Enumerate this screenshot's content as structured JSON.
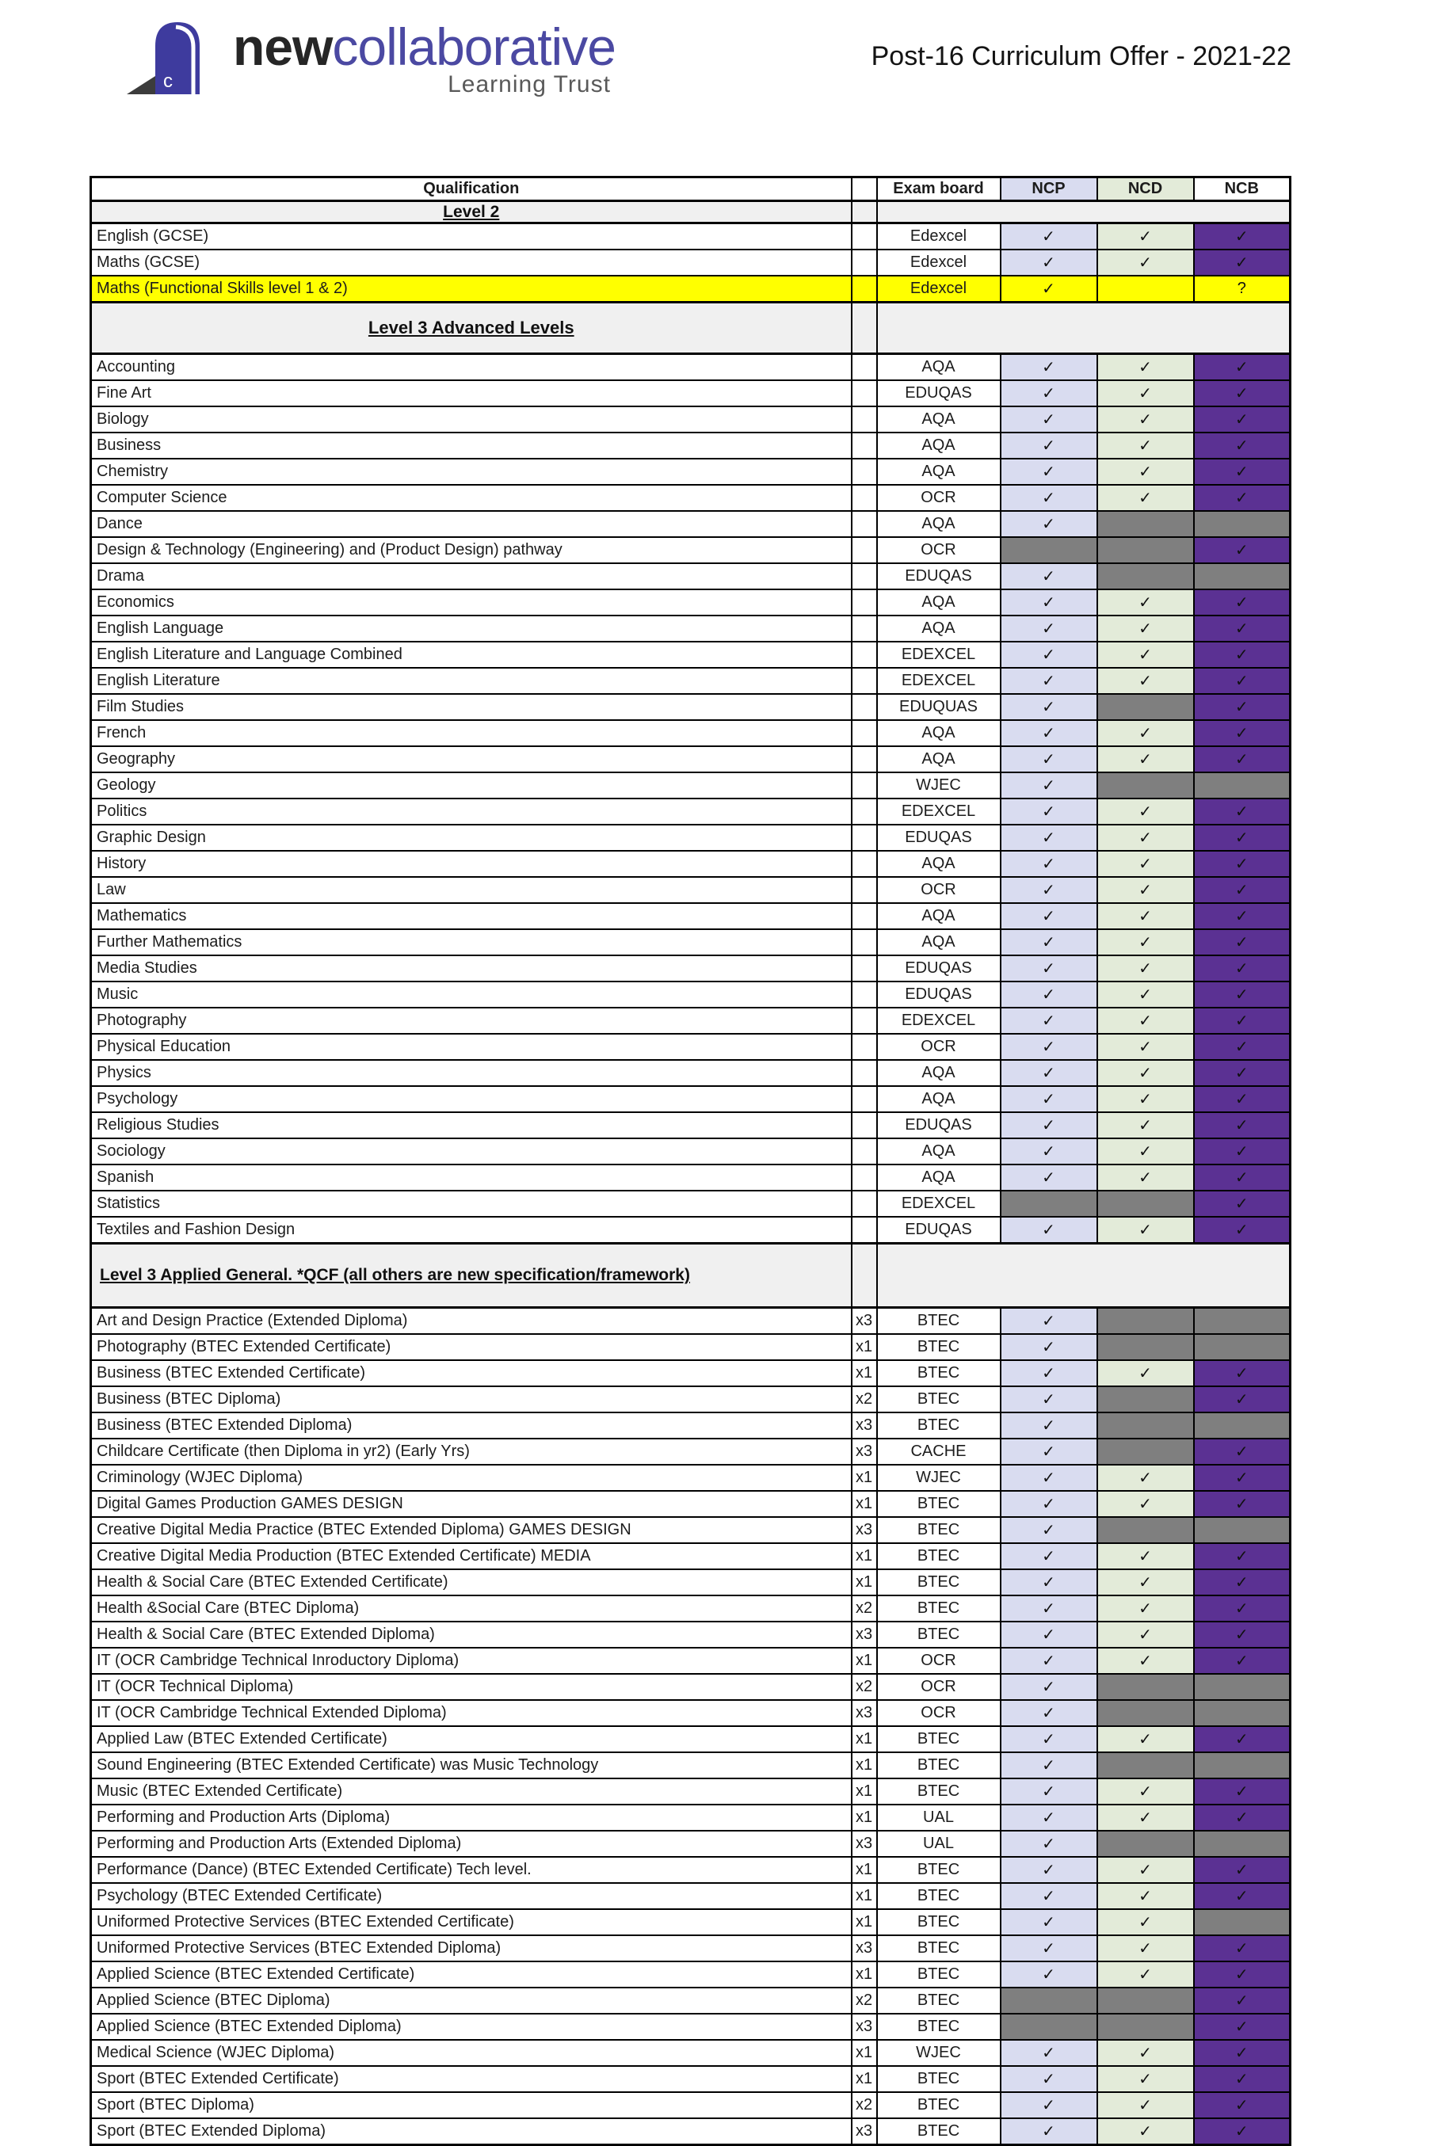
{
  "header": {
    "logo": {
      "brand_bold": "new",
      "brand_light": "collaborative",
      "subtitle": "Learning Trust"
    },
    "title": "Post-16 Curriculum Offer - 2021-22"
  },
  "glyphs": {
    "check": "✓",
    "question": "?"
  },
  "colors": {
    "brand_purple": "#4b49a2",
    "cell_purple": "#5b3193",
    "cell_lavender": "#d9dcf0",
    "cell_green": "#e3ebd9",
    "cell_gray": "#7f7f7f",
    "highlight_yellow": "#ffff00",
    "section_gray": "#f0f0f0"
  },
  "table": {
    "columns": [
      "Qualification",
      "",
      "Exam board",
      "NCP",
      "NCD",
      "NCB"
    ],
    "cell_codes": {
      "c": "check on tint",
      "p": "check on purple",
      "g": "gray blocked",
      "q": "question mark",
      "": "empty"
    },
    "sections": [
      {
        "label": "Level 2",
        "rows": [
          {
            "q": "English (GCSE)",
            "x": "",
            "b": "Edexcel",
            "ncp": "c",
            "ncd": "c",
            "ncb": "p"
          },
          {
            "q": "Maths (GCSE)",
            "x": "",
            "b": "Edexcel",
            "ncp": "c",
            "ncd": "c",
            "ncb": "p"
          },
          {
            "q": "Maths (Functional Skills level 1 & 2)",
            "x": "",
            "b": "Edexcel",
            "ncp": "c",
            "ncd": "",
            "ncb": "q",
            "hl": true
          }
        ]
      },
      {
        "label": "Level 3 Advanced Levels",
        "rows": [
          {
            "q": "Accounting",
            "x": "",
            "b": "AQA",
            "ncp": "c",
            "ncd": "c",
            "ncb": "p"
          },
          {
            "q": "Fine Art",
            "x": "",
            "b": "EDUQAS",
            "ncp": "c",
            "ncd": "c",
            "ncb": "p"
          },
          {
            "q": "Biology",
            "x": "",
            "b": "AQA",
            "ncp": "c",
            "ncd": "c",
            "ncb": "p"
          },
          {
            "q": "Business",
            "x": "",
            "b": "AQA",
            "ncp": "c",
            "ncd": "c",
            "ncb": "p"
          },
          {
            "q": "Chemistry",
            "x": "",
            "b": "AQA",
            "ncp": "c",
            "ncd": "c",
            "ncb": "p"
          },
          {
            "q": "Computer Science",
            "x": "",
            "b": "OCR",
            "ncp": "c",
            "ncd": "c",
            "ncb": "p"
          },
          {
            "q": "Dance",
            "x": "",
            "b": "AQA",
            "ncp": "c",
            "ncd": "g",
            "ncb": "g"
          },
          {
            "q": "Design & Technology (Engineering)  and  (Product Design) pathway",
            "x": "",
            "b": "OCR",
            "ncp": "g",
            "ncd": "g",
            "ncb": "p"
          },
          {
            "q": "Drama",
            "x": "",
            "b": "EDUQAS",
            "ncp": "c",
            "ncd": "g",
            "ncb": "g"
          },
          {
            "q": "Economics",
            "x": "",
            "b": "AQA",
            "ncp": "c",
            "ncd": "c",
            "ncb": "p"
          },
          {
            "q": "English Language",
            "x": "",
            "b": "AQA",
            "ncp": "c",
            "ncd": "c",
            "ncb": "p"
          },
          {
            "q": "English Literature and Language Combined",
            "x": "",
            "b": "EDEXCEL",
            "ncp": "c",
            "ncd": "c",
            "ncb": "p"
          },
          {
            "q": "English Literature",
            "x": "",
            "b": "EDEXCEL",
            "ncp": "c",
            "ncd": "c",
            "ncb": "p"
          },
          {
            "q": "Film Studies",
            "x": "",
            "b": "EDUQUAS",
            "ncp": "c",
            "ncd": "g",
            "ncb": "p"
          },
          {
            "q": "French",
            "x": "",
            "b": "AQA",
            "ncp": "c",
            "ncd": "c",
            "ncb": "p"
          },
          {
            "q": "Geography",
            "x": "",
            "b": "AQA",
            "ncp": "c",
            "ncd": "c",
            "ncb": "p"
          },
          {
            "q": "Geology",
            "x": "",
            "b": "WJEC",
            "ncp": "c",
            "ncd": "g",
            "ncb": "g"
          },
          {
            "q": "Politics",
            "x": "",
            "b": "EDEXCEL",
            "ncp": "c",
            "ncd": "c",
            "ncb": "p"
          },
          {
            "q": "Graphic Design",
            "x": "",
            "b": "EDUQAS",
            "ncp": "c",
            "ncd": "c",
            "ncb": "p"
          },
          {
            "q": "History",
            "x": "",
            "b": "AQA",
            "ncp": "c",
            "ncd": "c",
            "ncb": "p"
          },
          {
            "q": "Law",
            "x": "",
            "b": "OCR",
            "ncp": "c",
            "ncd": "c",
            "ncb": "p"
          },
          {
            "q": "Mathematics",
            "x": "",
            "b": "AQA",
            "ncp": "c",
            "ncd": "c",
            "ncb": "p"
          },
          {
            "q": "Further Mathematics",
            "x": "",
            "b": "AQA",
            "ncp": "c",
            "ncd": "c",
            "ncb": "p"
          },
          {
            "q": "Media Studies",
            "x": "",
            "b": "EDUQAS",
            "ncp": "c",
            "ncd": "c",
            "ncb": "p"
          },
          {
            "q": "Music",
            "x": "",
            "b": "EDUQAS",
            "ncp": "c",
            "ncd": "c",
            "ncb": "p"
          },
          {
            "q": "Photography",
            "x": "",
            "b": "EDEXCEL",
            "ncp": "c",
            "ncd": "c",
            "ncb": "p"
          },
          {
            "q": "Physical Education",
            "x": "",
            "b": "OCR",
            "ncp": "c",
            "ncd": "c",
            "ncb": "p"
          },
          {
            "q": "Physics",
            "x": "",
            "b": "AQA",
            "ncp": "c",
            "ncd": "c",
            "ncb": "p"
          },
          {
            "q": "Psychology",
            "x": "",
            "b": "AQA",
            "ncp": "c",
            "ncd": "c",
            "ncb": "p"
          },
          {
            "q": "Religious Studies",
            "x": "",
            "b": "EDUQAS",
            "ncp": "c",
            "ncd": "c",
            "ncb": "p"
          },
          {
            "q": "Sociology",
            "x": "",
            "b": "AQA",
            "ncp": "c",
            "ncd": "c",
            "ncb": "p"
          },
          {
            "q": "Spanish",
            "x": "",
            "b": "AQA",
            "ncp": "c",
            "ncd": "c",
            "ncb": "p"
          },
          {
            "q": "Statistics",
            "x": "",
            "b": "EDEXCEL",
            "ncp": "g",
            "ncd": "g",
            "ncb": "p"
          },
          {
            "q": "Textiles and Fashion Design",
            "x": "",
            "b": "EDUQAS",
            "ncp": "c",
            "ncd": "c",
            "ncb": "p"
          }
        ]
      },
      {
        "label": "Level 3 Applied General.  *QCF (all others are new specification/framework)",
        "rows": [
          {
            "q": "Art and Design Practice (Extended Diploma)",
            "x": "x3",
            "b": "BTEC",
            "ncp": "c",
            "ncd": "g",
            "ncb": "g"
          },
          {
            "q": "Photography (BTEC Extended Certificate)",
            "x": "x1",
            "b": "BTEC",
            "ncp": "c",
            "ncd": "g",
            "ncb": "g"
          },
          {
            "q": "Business (BTEC Extended Certificate)",
            "x": "x1",
            "b": "BTEC",
            "ncp": "c",
            "ncd": "c",
            "ncb": "p"
          },
          {
            "q": "Business (BTEC Diploma)",
            "x": "x2",
            "b": "BTEC",
            "ncp": "c",
            "ncd": "g",
            "ncb": "p"
          },
          {
            "q": "Business (BTEC Extended Diploma)",
            "x": "x3",
            "b": "BTEC",
            "ncp": "c",
            "ncd": "g",
            "ncb": "g"
          },
          {
            "q": "Childcare Certificate (then Diploma in yr2) (Early Yrs)",
            "x": "x3",
            "b": "CACHE",
            "ncp": "c",
            "ncd": "g",
            "ncb": "p"
          },
          {
            "q": "Criminology (WJEC Diploma)",
            "x": "x1",
            "b": "WJEC",
            "ncp": "c",
            "ncd": "c",
            "ncb": "p"
          },
          {
            "q": "Digital Games Production GAMES DESIGN",
            "x": "x1",
            "b": "BTEC",
            "ncp": "c",
            "ncd": "c",
            "ncb": "p"
          },
          {
            "q": "Creative Digital Media Practice (BTEC Extended Diploma) GAMES DESIGN",
            "x": "x3",
            "b": "BTEC",
            "ncp": "c",
            "ncd": "g",
            "ncb": "g"
          },
          {
            "q": "Creative Digital Media Production (BTEC Extended Certificate)  MEDIA",
            "x": "x1",
            "b": "BTEC",
            "ncp": "c",
            "ncd": "c",
            "ncb": "p"
          },
          {
            "q": "Health & Social Care (BTEC Extended Certificate)",
            "x": "x1",
            "b": "BTEC",
            "ncp": "c",
            "ncd": "c",
            "ncb": "p"
          },
          {
            "q": "Health &Social Care (BTEC Diploma)",
            "x": "x2",
            "b": "BTEC",
            "ncp": "c",
            "ncd": "c",
            "ncb": "p"
          },
          {
            "q": "Health & Social Care (BTEC Extended Diploma)",
            "x": "x3",
            "b": "BTEC",
            "ncp": "c",
            "ncd": "c",
            "ncb": "p"
          },
          {
            "q": "IT (OCR Cambridge Technical Inroductory Diploma)",
            "x": "x1",
            "b": "OCR",
            "ncp": "c",
            "ncd": "c",
            "ncb": "p"
          },
          {
            "q": "IT (OCR Technical Diploma)",
            "x": "x2",
            "b": "OCR",
            "ncp": "c",
            "ncd": "g",
            "ncb": "g"
          },
          {
            "q": "IT (OCR Cambridge Technical Extended Diploma)",
            "x": "x3",
            "b": "OCR",
            "ncp": "c",
            "ncd": "g",
            "ncb": "g"
          },
          {
            "q": "Applied Law (BTEC Extended Certificate)",
            "x": "x1",
            "b": "BTEC",
            "ncp": "c",
            "ncd": "c",
            "ncb": "p"
          },
          {
            "q": "Sound Engineering (BTEC Extended Certificate) was Music Technology",
            "x": "x1",
            "b": "BTEC",
            "ncp": "c",
            "ncd": "g",
            "ncb": "g"
          },
          {
            "q": "Music (BTEC Extended Certificate)",
            "x": "x1",
            "b": "BTEC",
            "ncp": "c",
            "ncd": "c",
            "ncb": "p"
          },
          {
            "q": "Performing and Production Arts (Diploma)",
            "x": "x1",
            "b": "UAL",
            "ncp": "c",
            "ncd": "c",
            "ncb": "p"
          },
          {
            "q": "Performing and Production Arts (Extended Diploma)",
            "x": "x3",
            "b": "UAL",
            "ncp": "c",
            "ncd": "g",
            "ncb": "g"
          },
          {
            "q": "Performance (Dance) (BTEC Extended Certificate) Tech level.",
            "x": "x1",
            "b": "BTEC",
            "ncp": "c",
            "ncd": "c",
            "ncb": "p"
          },
          {
            "q": "Psychology (BTEC Extended Certificate)",
            "x": "x1",
            "b": "BTEC",
            "ncp": "c",
            "ncd": "c",
            "ncb": "p"
          },
          {
            "q": "Uniformed Protective Services (BTEC Extended Certificate)",
            "x": "x1",
            "b": "BTEC",
            "ncp": "c",
            "ncd": "c",
            "ncb": "g"
          },
          {
            "q": "Uniformed Protective Services (BTEC Extended Diploma)",
            "x": "x3",
            "b": "BTEC",
            "ncp": "c",
            "ncd": "c",
            "ncb": "p"
          },
          {
            "q": "Applied Science (BTEC Extended Certificate)",
            "x": "x1",
            "b": "BTEC",
            "ncp": "c",
            "ncd": "c",
            "ncb": "p"
          },
          {
            "q": "Applied Science (BTEC Diploma)",
            "x": "x2",
            "b": "BTEC",
            "ncp": "g",
            "ncd": "g",
            "ncb": "p"
          },
          {
            "q": "Applied Science (BTEC Extended Diploma)",
            "x": "x3",
            "b": "BTEC",
            "ncp": "g",
            "ncd": "g",
            "ncb": "p"
          },
          {
            "q": "Medical Science (WJEC Diploma)",
            "x": "x1",
            "b": "WJEC",
            "ncp": "c",
            "ncd": "c",
            "ncb": "p"
          },
          {
            "q": "Sport (BTEC Extended Certificate)",
            "x": "x1",
            "b": "BTEC",
            "ncp": "c",
            "ncd": "c",
            "ncb": "p"
          },
          {
            "q": "Sport (BTEC Diploma)",
            "x": "x2",
            "b": "BTEC",
            "ncp": "c",
            "ncd": "c",
            "ncb": "p"
          },
          {
            "q": "Sport (BTEC Extended Diploma)",
            "x": "x3",
            "b": "BTEC",
            "ncp": "c",
            "ncd": "c",
            "ncb": "p"
          }
        ]
      }
    ]
  }
}
